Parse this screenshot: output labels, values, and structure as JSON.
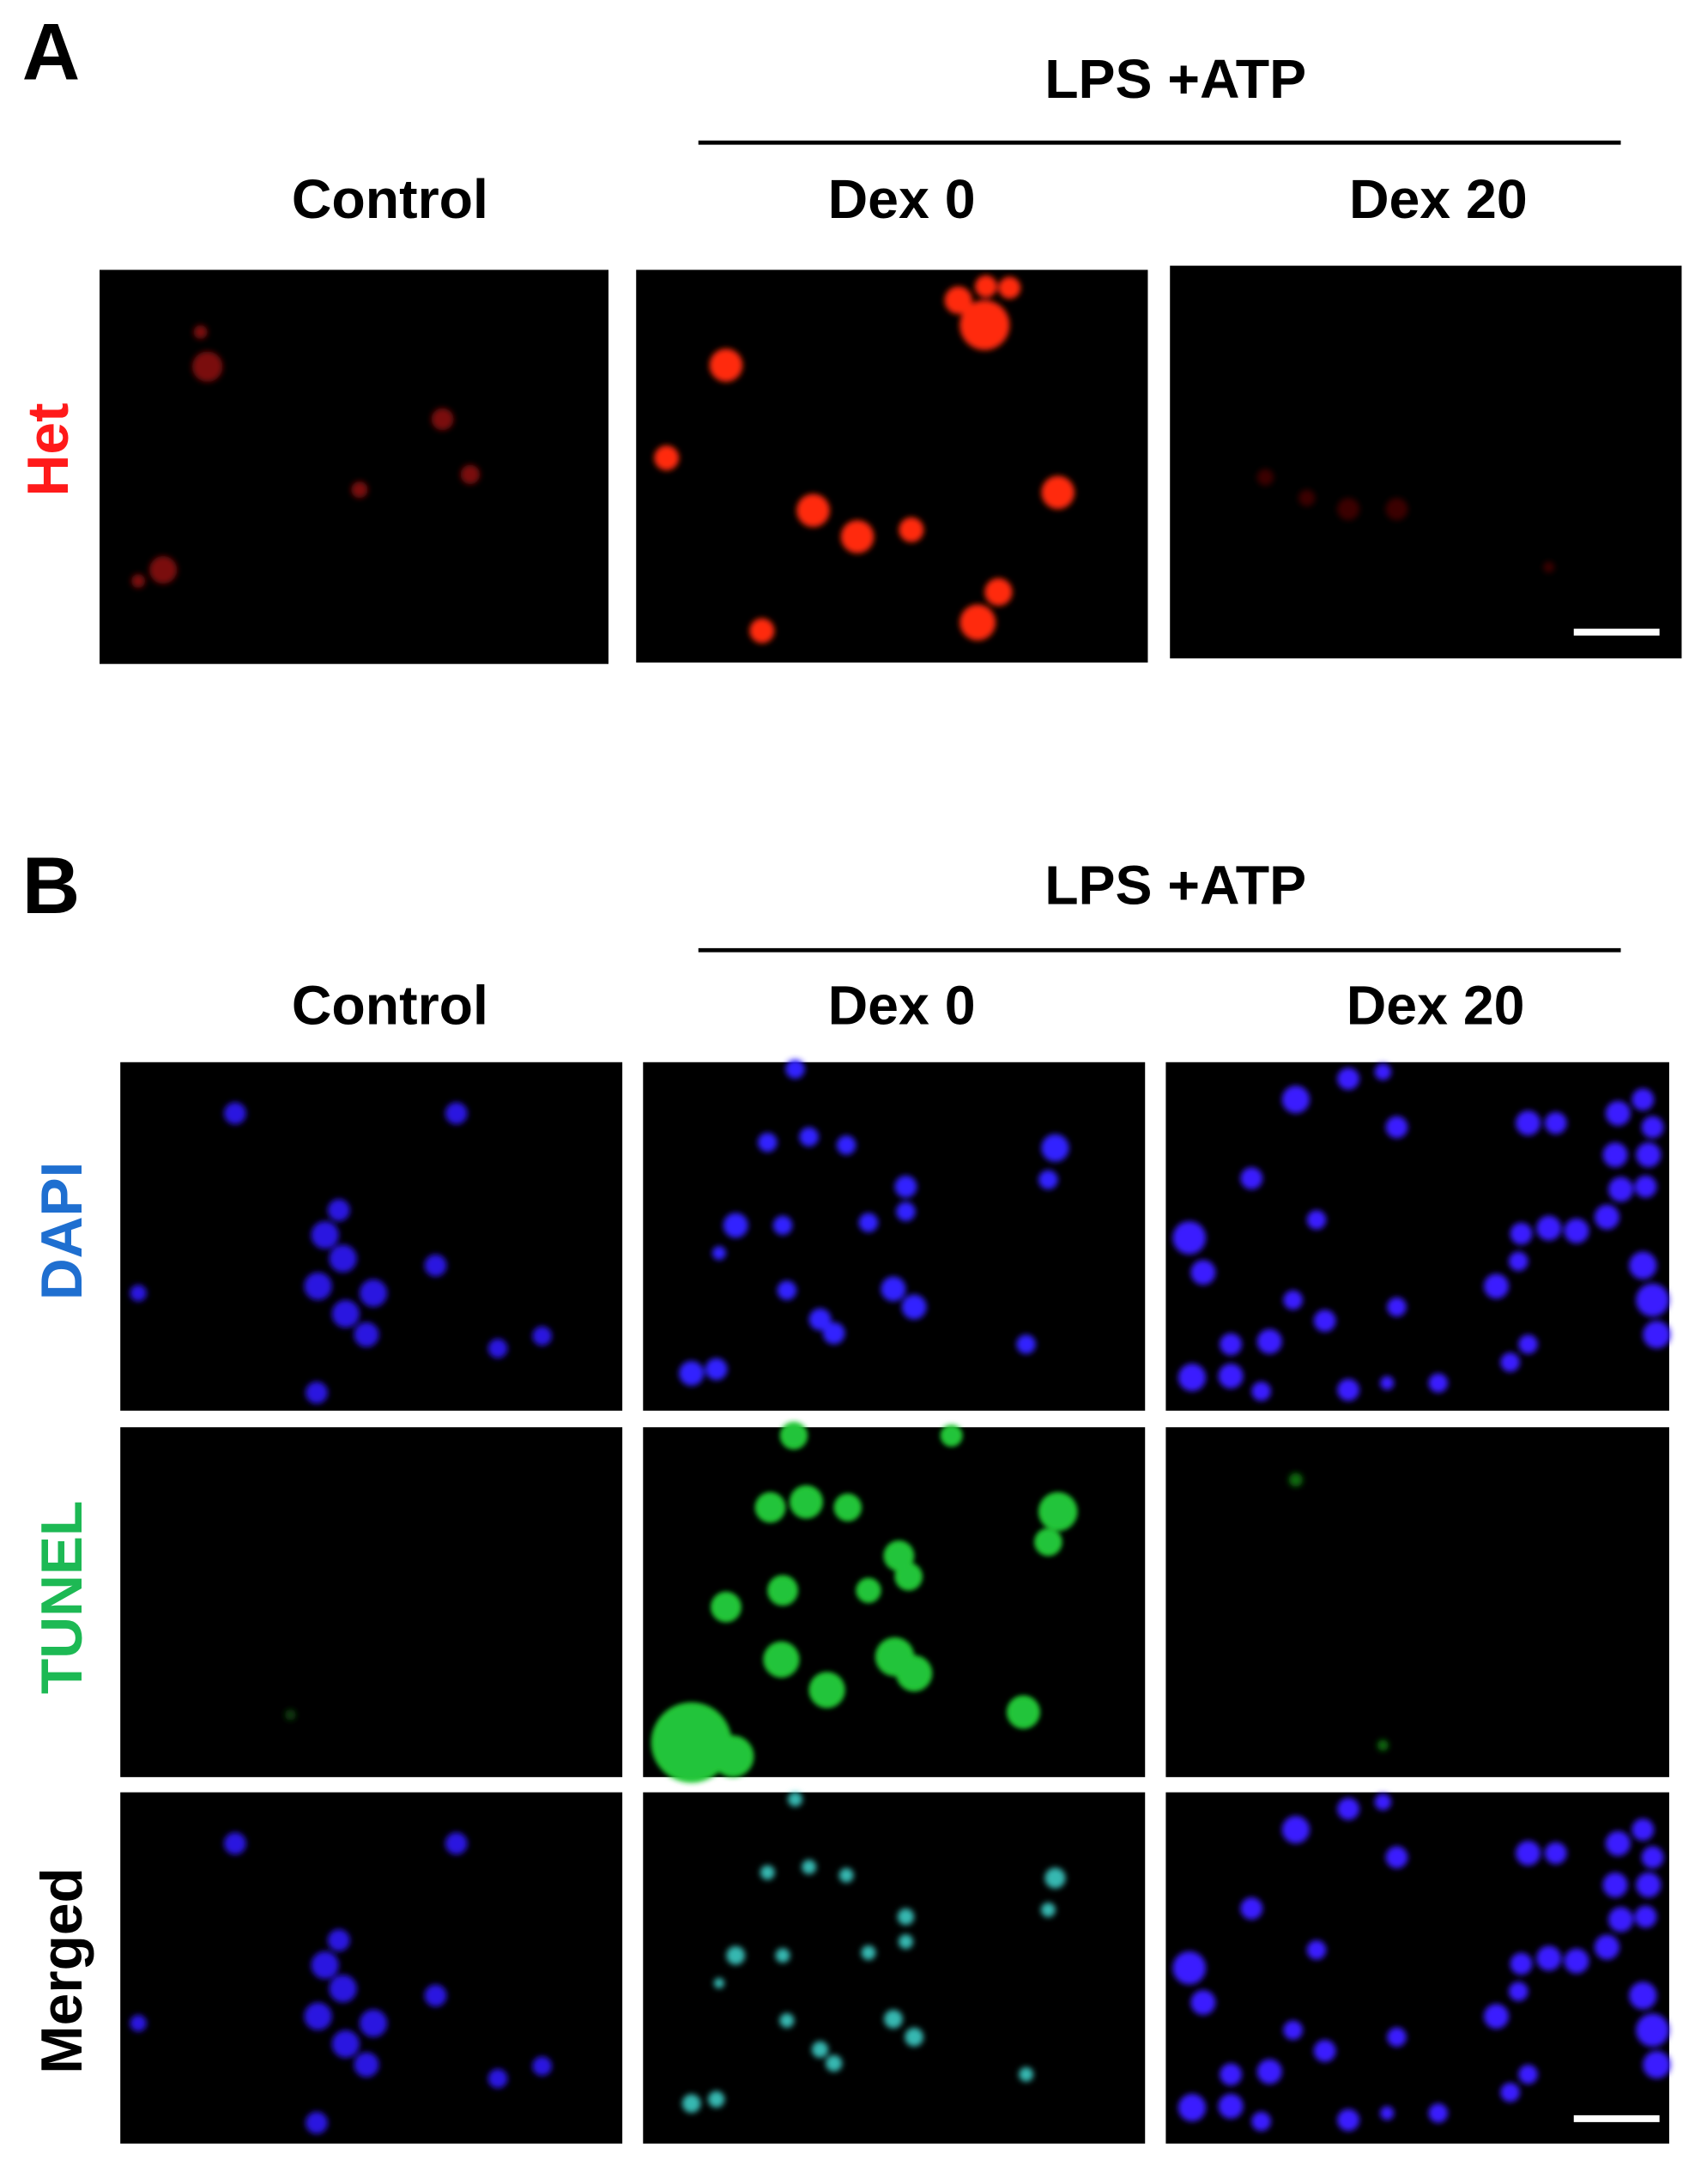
{
  "panels": [
    {
      "label": "A",
      "group_label": "LPS +ATP",
      "columns": [
        "Control",
        "Dex 0",
        "Dex 20"
      ],
      "rows": [
        "Het"
      ]
    },
    {
      "label": "B",
      "group_label": "LPS +ATP",
      "columns": [
        "Control",
        "Dex 0",
        "Dex 20"
      ],
      "rows": [
        "DAPI",
        "TUNEL",
        "Merged"
      ]
    }
  ]
}
